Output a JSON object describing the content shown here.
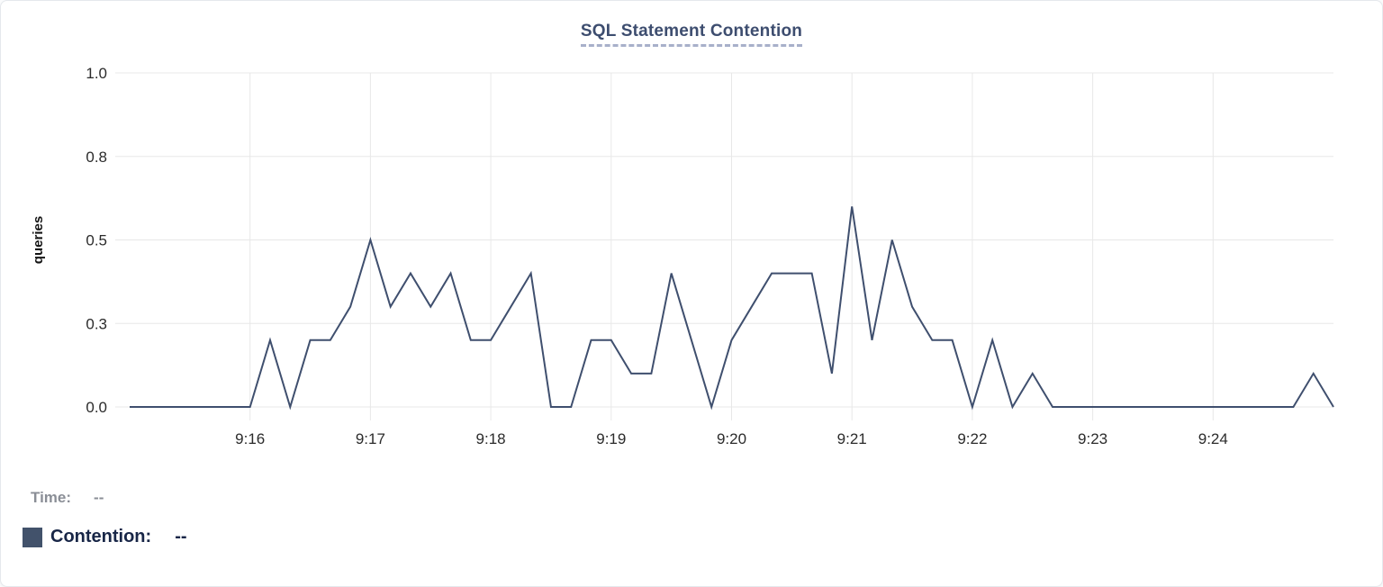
{
  "header": {
    "title": "SQL Statement Contention"
  },
  "summary": {
    "time_label": "Time:",
    "time_value": "--",
    "series_label": "Contention:",
    "series_value": "--"
  },
  "colors": {
    "line": "#3f4f6e",
    "swatch": "#42526b",
    "title": "#3d4d6f",
    "title_underline": "#a8b0ca",
    "contention_text": "#182647",
    "time_text": "#8a8e96"
  },
  "chart_data": {
    "type": "line",
    "title": "SQL Statement Contention",
    "xlabel": "",
    "ylabel": "queries",
    "ylim": [
      0,
      1.0
    ],
    "yticks": [
      0,
      0.25,
      0.5,
      0.75,
      1.0
    ],
    "ytick_labels": [
      "0.0",
      "0.3",
      "0.5",
      "0.8",
      "1.0"
    ],
    "grid": true,
    "legend_position": "none",
    "x_start_time": "9:15:00",
    "x_end_time": "9:25:00",
    "interval_seconds": 10,
    "xticks_seconds": [
      60,
      120,
      180,
      240,
      300,
      360,
      420,
      480,
      540
    ],
    "xtick_labels": [
      "9:16",
      "9:17",
      "9:18",
      "9:19",
      "9:20",
      "9:21",
      "9:22",
      "9:23",
      "9:24"
    ],
    "series": [
      {
        "name": "Contention",
        "color": "#3f4f6e",
        "values": [
          0,
          0,
          0,
          0,
          0,
          0,
          0,
          0.2,
          0,
          0.2,
          0.2,
          0.3,
          0.5,
          0.3,
          0.4,
          0.3,
          0.4,
          0.2,
          0.2,
          0.3,
          0.4,
          0,
          0,
          0.2,
          0.2,
          0.1,
          0.1,
          0.4,
          0.2,
          0,
          0.2,
          0.3,
          0.4,
          0.4,
          0.4,
          0.1,
          0.6,
          0.2,
          0.5,
          0.3,
          0.2,
          0.2,
          0,
          0.2,
          0,
          0.1,
          0,
          0,
          0,
          0,
          0,
          0,
          0,
          0,
          0,
          0,
          0,
          0,
          0,
          0.1,
          0
        ]
      }
    ]
  }
}
